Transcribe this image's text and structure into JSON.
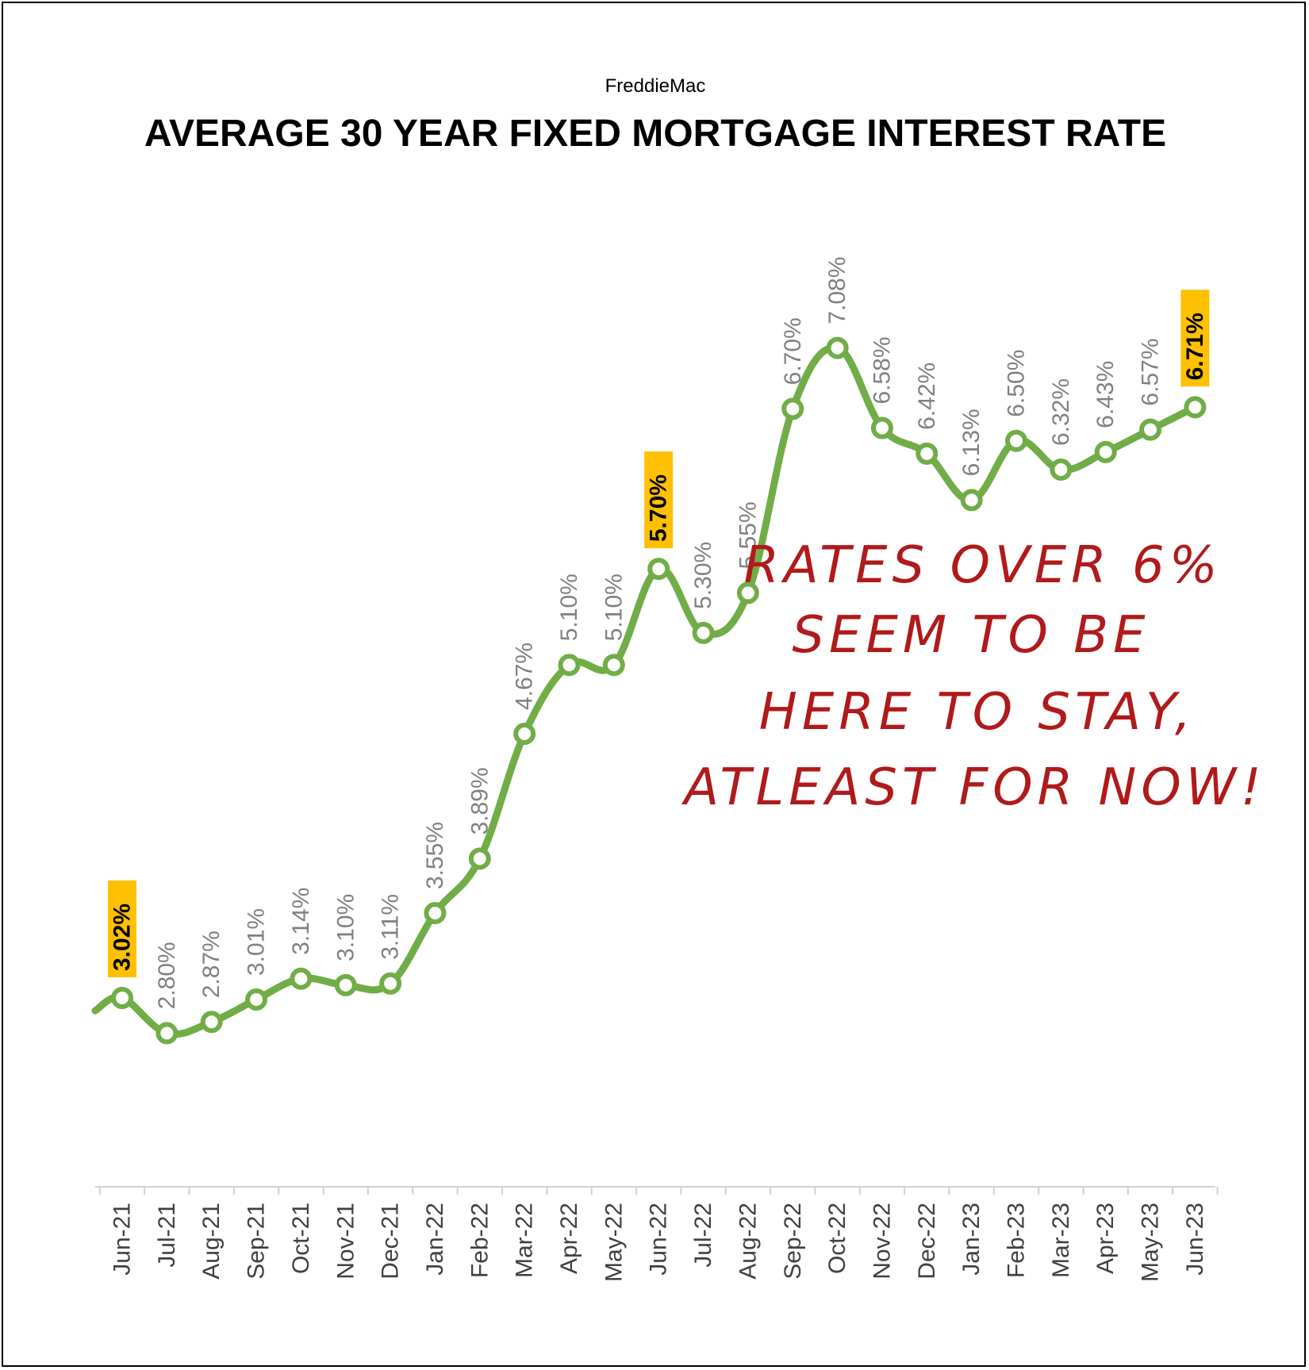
{
  "chart_data": {
    "type": "line",
    "subtitle": "FreddieMac",
    "title": "AVERAGE 30 YEAR FIXED MORTGAGE INTEREST RATE",
    "xlabel": "",
    "ylabel": "",
    "categories": [
      "Jun-21",
      "Jul-21",
      "Aug-21",
      "Sep-21",
      "Oct-21",
      "Nov-21",
      "Dec-21",
      "Jan-22",
      "Feb-22",
      "Mar-22",
      "Apr-22",
      "May-22",
      "Jun-22",
      "Jul-22",
      "Aug-22",
      "Sep-22",
      "Oct-22",
      "Nov-22",
      "Dec-22",
      "Jan-23",
      "Feb-23",
      "Mar-23",
      "Apr-23",
      "May-23",
      "Jun-23"
    ],
    "series": [
      {
        "values": [
          3.02,
          2.8,
          2.87,
          3.01,
          3.14,
          3.1,
          3.11,
          3.55,
          3.89,
          4.67,
          5.1,
          5.1,
          5.7,
          5.3,
          5.55,
          6.7,
          7.08,
          6.58,
          6.42,
          6.13,
          6.5,
          6.32,
          6.43,
          6.57,
          6.71
        ]
      }
    ],
    "data_labels": [
      "3.02%",
      "2.80%",
      "2.87%",
      "3.01%",
      "3.14%",
      "3.10%",
      "3.11%",
      "3.55%",
      "3.89%",
      "4.67%",
      "5.10%",
      "5.10%",
      "5.70%",
      "5.30%",
      "5.55%",
      "6.70%",
      "7.08%",
      "6.58%",
      "6.42%",
      "6.13%",
      "6.50%",
      "6.32%",
      "6.43%",
      "6.57%",
      "6.71%"
    ],
    "highlighted_points": [
      "Jun-21",
      "Jun-22",
      "Jun-23"
    ],
    "annotation": [
      "RATES OVER 6%",
      "SEEM TO BE",
      "HERE TO STAY,",
      "ATLEAST FOR NOW!"
    ],
    "grid": false,
    "legend": "none",
    "colors": {
      "line": "#70ad47",
      "marker_fill": "#ffffff",
      "highlight_box": "#ffc000",
      "label": "#808080",
      "annotation": "#b01a1a",
      "axis": "#d0d0d0"
    }
  }
}
